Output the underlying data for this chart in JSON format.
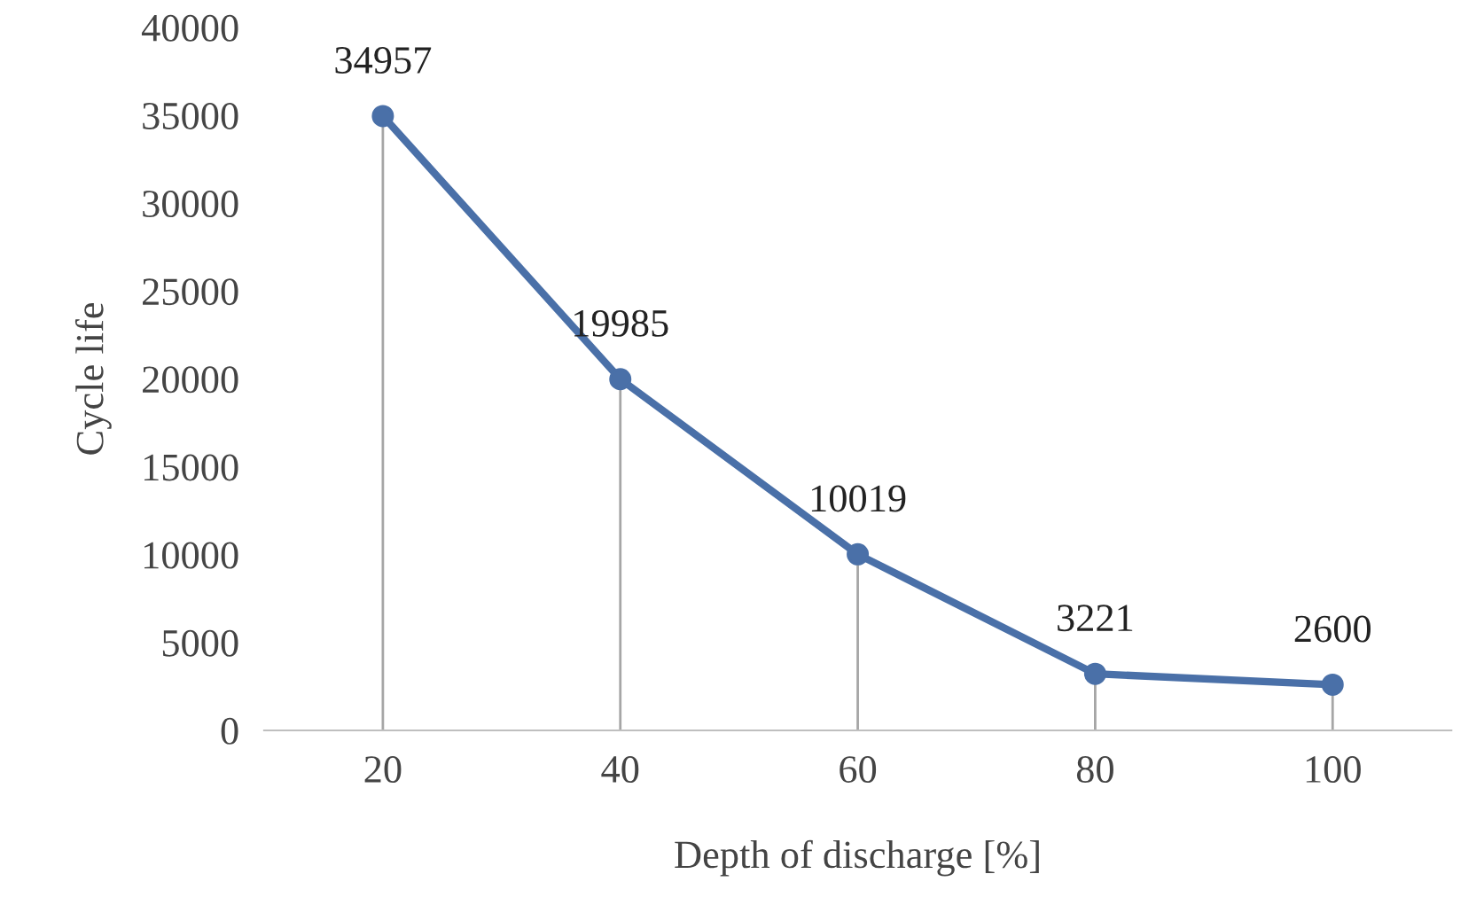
{
  "chart_data": {
    "type": "line",
    "xlabel": "Depth of discharge [%]",
    "ylabel": "Cycle life",
    "categories": [
      "20",
      "40",
      "60",
      "80",
      "100"
    ],
    "series": [
      {
        "color": "#4a70a8",
        "values": [
          34957,
          19985,
          10019,
          3221,
          2600
        ]
      }
    ],
    "ylim": [
      0,
      40000
    ],
    "yticks": [
      0,
      5000,
      10000,
      15000,
      20000,
      25000,
      30000,
      35000,
      40000
    ],
    "data_labels": true,
    "legend": false,
    "marker": "circle",
    "line_style": "solid"
  }
}
